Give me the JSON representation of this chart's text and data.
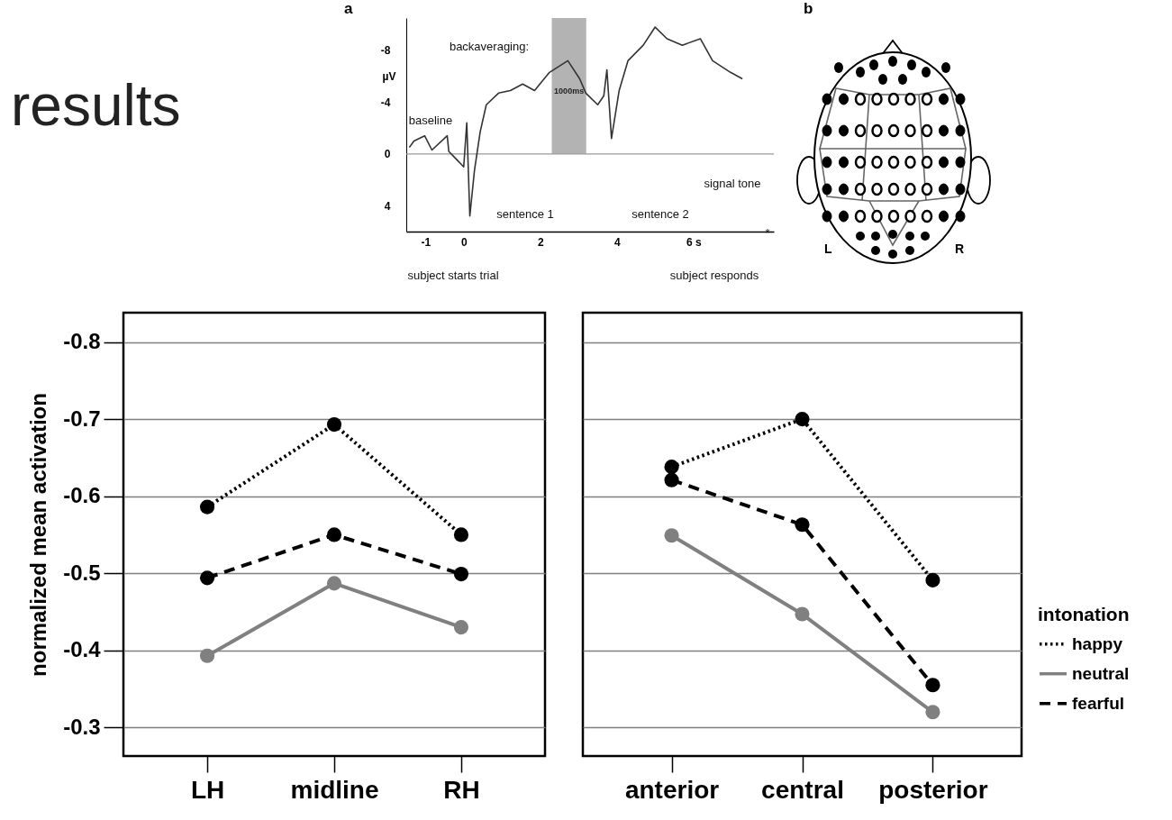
{
  "chart_data": [
    {
      "type": "line",
      "title": "a",
      "ylabel": "µV",
      "x": [
        -1.42,
        -1.3,
        -1.02,
        -0.83,
        -0.43,
        -0.39,
        0,
        0.08,
        0.16,
        0.28,
        0.43,
        0.59,
        0.91,
        1.22,
        1.54,
        1.85,
        2.24,
        2.72,
        3.03,
        3.19,
        3.5,
        3.66,
        3.74,
        3.86,
        4.06,
        4.29,
        4.69,
        5.0,
        5.31,
        5.71,
        6.18,
        6.5,
        6.97,
        7.28
      ],
      "series": [
        {
          "color": "#333333",
          "values": [
            -0.5,
            -1.0,
            -1.4,
            -0.3,
            -1.4,
            -0.2,
            1.0,
            -2.4,
            4.8,
            1.3,
            -1.7,
            -3.8,
            -4.7,
            -4.9,
            -5.4,
            -4.9,
            -6.3,
            -7.2,
            -5.8,
            -4.7,
            -3.8,
            -4.5,
            -6.5,
            -1.2,
            -4.9,
            -7.2,
            -8.4,
            -9.8,
            -8.9,
            -8.4,
            -8.9,
            -7.2,
            -6.3,
            -5.8
          ]
        }
      ],
      "xlim": [
        -1.5,
        8.1
      ],
      "ylim": [
        6,
        -10.5
      ],
      "xticks": [
        -1,
        0,
        2,
        4,
        {
          "value": 6,
          "label": "6 s"
        }
      ],
      "yticks": [
        4,
        0,
        -4,
        -8
      ],
      "ref_lines": [
        {
          "axis": "y",
          "value": 0,
          "color": "#999999"
        }
      ],
      "bands": [
        {
          "axis": "x",
          "from": 2.3,
          "to": 3.2,
          "label": "1000ms",
          "color": "#b3b3b3"
        }
      ],
      "annotations": [
        "backaveraging:",
        "baseline",
        "sentence 1",
        "sentence 2",
        "signal tone",
        "*",
        "subject starts trial",
        "subject responds"
      ]
    },
    {
      "type": "other",
      "title": "b",
      "annotations": [
        "L",
        "R"
      ]
    },
    {
      "type": "line",
      "title": "results",
      "ylabel": "normalized mean activation",
      "categories": [
        "LH",
        "midline",
        "RH"
      ],
      "series": [
        {
          "color": "#000000",
          "line_style": "dotted",
          "values": [
            -0.586,
            -0.693,
            -0.55
          ]
        },
        {
          "color": "#808080",
          "line_style": "solid",
          "values": [
            -0.393,
            -0.487,
            -0.43
          ]
        },
        {
          "color": "#000000",
          "line_style": "dashed",
          "values": [
            -0.494,
            -0.55,
            -0.499
          ]
        }
      ],
      "ylim": [
        -0.263,
        -0.838
      ],
      "yticks": [
        -0.8,
        -0.7,
        -0.6,
        -0.5,
        -0.4,
        -0.3
      ],
      "grid": "y",
      "marker": "circle"
    },
    {
      "type": "line",
      "legend_title": "intonation",
      "categories": [
        "anterior",
        "central",
        "posterior"
      ],
      "series": [
        {
          "name": "happy",
          "color": "#000000",
          "line_style": "dotted",
          "values": [
            -0.638,
            -0.7,
            -0.491
          ]
        },
        {
          "name": "neutral",
          "color": "#808080",
          "line_style": "solid",
          "values": [
            -0.549,
            -0.447,
            -0.32
          ]
        },
        {
          "name": "fearful",
          "color": "#000000",
          "line_style": "dashed",
          "values": [
            -0.621,
            -0.563,
            -0.355
          ]
        }
      ],
      "ylim": [
        -0.263,
        -0.838
      ],
      "yticks": [
        -0.8,
        -0.7,
        -0.6,
        -0.5,
        -0.4,
        -0.3
      ],
      "grid": "y",
      "marker": "circle",
      "legend": "right",
      "tick_labels": "x"
    }
  ]
}
